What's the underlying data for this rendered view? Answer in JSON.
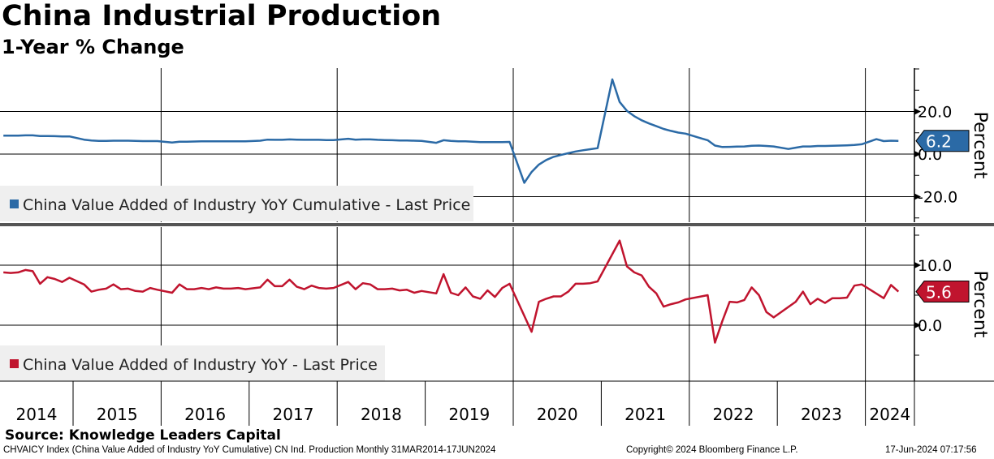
{
  "header": {
    "title": "China Industrial Production",
    "subtitle": "1-Year % Change"
  },
  "source": "Source: Knowledge Leaders Capital",
  "footer": {
    "left": "CHVAICY Index (China Value Added of Industry YoY Cumulative) CN Ind. Production  Monthly 31MAR2014-17JUN2024",
    "center": "Copyright© 2024 Bloomberg Finance L.P.",
    "right": "17-Jun-2024 07:17:56"
  },
  "chart_data": [
    {
      "type": "line",
      "title": "China Value Added of Industry YoY Cumulative - Last Price",
      "legend": "China Value Added of Industry YoY Cumulative - Last Price",
      "ylabel": "Percent",
      "yticks": [
        20.0,
        0.0,
        -20.0
      ],
      "tick_labels": [
        "20.0",
        "0.0",
        "-20.0"
      ],
      "last_value": "6.2",
      "color": "#2b6aa6",
      "points": [
        [
          "2014-03",
          8.7
        ],
        [
          "2014-04",
          8.7
        ],
        [
          "2014-05",
          8.7
        ],
        [
          "2014-06",
          8.8
        ],
        [
          "2014-07",
          8.8
        ],
        [
          "2014-08",
          8.5
        ],
        [
          "2014-09",
          8.5
        ],
        [
          "2014-10",
          8.4
        ],
        [
          "2014-11",
          8.3
        ],
        [
          "2014-12",
          8.3
        ],
        [
          "2015-02",
          6.8
        ],
        [
          "2015-03",
          6.4
        ],
        [
          "2015-04",
          6.2
        ],
        [
          "2015-05",
          6.2
        ],
        [
          "2015-06",
          6.3
        ],
        [
          "2015-07",
          6.3
        ],
        [
          "2015-08",
          6.3
        ],
        [
          "2015-09",
          6.2
        ],
        [
          "2015-10",
          6.1
        ],
        [
          "2015-11",
          6.1
        ],
        [
          "2015-12",
          6.1
        ],
        [
          "2016-02",
          5.4
        ],
        [
          "2016-03",
          5.8
        ],
        [
          "2016-04",
          5.8
        ],
        [
          "2016-05",
          5.9
        ],
        [
          "2016-06",
          6.0
        ],
        [
          "2016-07",
          6.0
        ],
        [
          "2016-08",
          6.0
        ],
        [
          "2016-09",
          6.0
        ],
        [
          "2016-10",
          6.0
        ],
        [
          "2016-11",
          6.0
        ],
        [
          "2016-12",
          6.0
        ],
        [
          "2017-02",
          6.3
        ],
        [
          "2017-03",
          6.8
        ],
        [
          "2017-04",
          6.7
        ],
        [
          "2017-05",
          6.7
        ],
        [
          "2017-06",
          6.9
        ],
        [
          "2017-07",
          6.8
        ],
        [
          "2017-08",
          6.7
        ],
        [
          "2017-09",
          6.7
        ],
        [
          "2017-10",
          6.7
        ],
        [
          "2017-11",
          6.6
        ],
        [
          "2017-12",
          6.6
        ],
        [
          "2018-02",
          7.2
        ],
        [
          "2018-03",
          6.8
        ],
        [
          "2018-04",
          6.9
        ],
        [
          "2018-05",
          6.9
        ],
        [
          "2018-06",
          6.7
        ],
        [
          "2018-07",
          6.6
        ],
        [
          "2018-08",
          6.5
        ],
        [
          "2018-09",
          6.4
        ],
        [
          "2018-10",
          6.4
        ],
        [
          "2018-11",
          6.3
        ],
        [
          "2018-12",
          6.2
        ],
        [
          "2019-02",
          5.3
        ],
        [
          "2019-03",
          6.5
        ],
        [
          "2019-04",
          6.2
        ],
        [
          "2019-05",
          6.0
        ],
        [
          "2019-06",
          6.0
        ],
        [
          "2019-07",
          5.8
        ],
        [
          "2019-08",
          5.6
        ],
        [
          "2019-09",
          5.6
        ],
        [
          "2019-10",
          5.6
        ],
        [
          "2019-11",
          5.6
        ],
        [
          "2019-12",
          5.7
        ],
        [
          "2020-02",
          -13.5
        ],
        [
          "2020-03",
          -8.4
        ],
        [
          "2020-04",
          -4.9
        ],
        [
          "2020-05",
          -2.8
        ],
        [
          "2020-06",
          -1.3
        ],
        [
          "2020-07",
          -0.4
        ],
        [
          "2020-08",
          0.4
        ],
        [
          "2020-09",
          1.2
        ],
        [
          "2020-10",
          1.8
        ],
        [
          "2020-11",
          2.3
        ],
        [
          "2020-12",
          2.8
        ],
        [
          "2021-02",
          35.1
        ],
        [
          "2021-03",
          24.5
        ],
        [
          "2021-04",
          20.3
        ],
        [
          "2021-05",
          17.8
        ],
        [
          "2021-06",
          15.9
        ],
        [
          "2021-07",
          14.4
        ],
        [
          "2021-08",
          13.1
        ],
        [
          "2021-09",
          11.8
        ],
        [
          "2021-10",
          10.9
        ],
        [
          "2021-11",
          10.1
        ],
        [
          "2021-12",
          9.6
        ],
        [
          "2022-02",
          7.5
        ],
        [
          "2022-03",
          6.5
        ],
        [
          "2022-04",
          4.0
        ],
        [
          "2022-05",
          3.3
        ],
        [
          "2022-06",
          3.4
        ],
        [
          "2022-07",
          3.5
        ],
        [
          "2022-08",
          3.6
        ],
        [
          "2022-09",
          3.9
        ],
        [
          "2022-10",
          4.0
        ],
        [
          "2022-11",
          3.8
        ],
        [
          "2022-12",
          3.6
        ],
        [
          "2023-02",
          2.4
        ],
        [
          "2023-03",
          3.0
        ],
        [
          "2023-04",
          3.6
        ],
        [
          "2023-05",
          3.6
        ],
        [
          "2023-06",
          3.8
        ],
        [
          "2023-07",
          3.8
        ],
        [
          "2023-08",
          3.9
        ],
        [
          "2023-09",
          4.0
        ],
        [
          "2023-10",
          4.1
        ],
        [
          "2023-11",
          4.3
        ],
        [
          "2023-12",
          4.6
        ],
        [
          "2024-02",
          7.0
        ],
        [
          "2024-03",
          6.1
        ],
        [
          "2024-04",
          6.3
        ],
        [
          "2024-05",
          6.2
        ]
      ]
    },
    {
      "type": "line",
      "title": "China Value Added of Industry YoY - Last Price",
      "legend": "China Value Added of Industry YoY - Last Price",
      "ylabel": "Percent",
      "yticks": [
        10.0,
        0.0
      ],
      "tick_labels": [
        "10.0",
        "0.0"
      ],
      "last_value": "5.6",
      "color": "#c0142e",
      "points": [
        [
          "2014-03",
          8.8
        ],
        [
          "2014-04",
          8.7
        ],
        [
          "2014-05",
          8.8
        ],
        [
          "2014-06",
          9.2
        ],
        [
          "2014-07",
          9.0
        ],
        [
          "2014-08",
          6.9
        ],
        [
          "2014-09",
          8.0
        ],
        [
          "2014-10",
          7.7
        ],
        [
          "2014-11",
          7.2
        ],
        [
          "2014-12",
          7.9
        ],
        [
          "2015-02",
          6.8
        ],
        [
          "2015-03",
          5.6
        ],
        [
          "2015-04",
          5.9
        ],
        [
          "2015-05",
          6.1
        ],
        [
          "2015-06",
          6.8
        ],
        [
          "2015-07",
          6.0
        ],
        [
          "2015-08",
          6.1
        ],
        [
          "2015-09",
          5.7
        ],
        [
          "2015-10",
          5.6
        ],
        [
          "2015-11",
          6.2
        ],
        [
          "2015-12",
          5.9
        ],
        [
          "2016-02",
          5.4
        ],
        [
          "2016-03",
          6.8
        ],
        [
          "2016-04",
          6.0
        ],
        [
          "2016-05",
          6.0
        ],
        [
          "2016-06",
          6.2
        ],
        [
          "2016-07",
          6.0
        ],
        [
          "2016-08",
          6.3
        ],
        [
          "2016-09",
          6.1
        ],
        [
          "2016-10",
          6.1
        ],
        [
          "2016-11",
          6.2
        ],
        [
          "2016-12",
          6.0
        ],
        [
          "2017-02",
          6.3
        ],
        [
          "2017-03",
          7.6
        ],
        [
          "2017-04",
          6.5
        ],
        [
          "2017-05",
          6.5
        ],
        [
          "2017-06",
          7.6
        ],
        [
          "2017-07",
          6.4
        ],
        [
          "2017-08",
          6.0
        ],
        [
          "2017-09",
          6.6
        ],
        [
          "2017-10",
          6.2
        ],
        [
          "2017-11",
          6.1
        ],
        [
          "2017-12",
          6.2
        ],
        [
          "2018-02",
          7.2
        ],
        [
          "2018-03",
          6.0
        ],
        [
          "2018-04",
          7.0
        ],
        [
          "2018-05",
          6.8
        ],
        [
          "2018-06",
          6.0
        ],
        [
          "2018-07",
          6.0
        ],
        [
          "2018-08",
          6.1
        ],
        [
          "2018-09",
          5.8
        ],
        [
          "2018-10",
          5.9
        ],
        [
          "2018-11",
          5.4
        ],
        [
          "2018-12",
          5.7
        ],
        [
          "2019-02",
          5.3
        ],
        [
          "2019-03",
          8.5
        ],
        [
          "2019-04",
          5.4
        ],
        [
          "2019-05",
          5.0
        ],
        [
          "2019-06",
          6.3
        ],
        [
          "2019-07",
          4.8
        ],
        [
          "2019-08",
          4.4
        ],
        [
          "2019-09",
          5.8
        ],
        [
          "2019-10",
          4.7
        ],
        [
          "2019-11",
          6.2
        ],
        [
          "2019-12",
          6.9
        ],
        [
          "2020-03",
          -1.1
        ],
        [
          "2020-04",
          3.9
        ],
        [
          "2020-05",
          4.4
        ],
        [
          "2020-06",
          4.8
        ],
        [
          "2020-07",
          4.8
        ],
        [
          "2020-08",
          5.6
        ],
        [
          "2020-09",
          6.9
        ],
        [
          "2020-10",
          6.9
        ],
        [
          "2020-11",
          7.0
        ],
        [
          "2020-12",
          7.3
        ],
        [
          "2021-03",
          14.1
        ],
        [
          "2021-04",
          9.8
        ],
        [
          "2021-05",
          8.8
        ],
        [
          "2021-06",
          8.3
        ],
        [
          "2021-07",
          6.4
        ],
        [
          "2021-08",
          5.3
        ],
        [
          "2021-09",
          3.1
        ],
        [
          "2021-10",
          3.5
        ],
        [
          "2021-11",
          3.8
        ],
        [
          "2021-12",
          4.3
        ],
        [
          "2022-03",
          5.0
        ],
        [
          "2022-04",
          -2.9
        ],
        [
          "2022-05",
          0.7
        ],
        [
          "2022-06",
          3.9
        ],
        [
          "2022-07",
          3.8
        ],
        [
          "2022-08",
          4.2
        ],
        [
          "2022-09",
          6.3
        ],
        [
          "2022-10",
          5.0
        ],
        [
          "2022-11",
          2.2
        ],
        [
          "2022-12",
          1.3
        ],
        [
          "2023-03",
          3.9
        ],
        [
          "2023-04",
          5.6
        ],
        [
          "2023-05",
          3.5
        ],
        [
          "2023-06",
          4.4
        ],
        [
          "2023-07",
          3.7
        ],
        [
          "2023-08",
          4.5
        ],
        [
          "2023-09",
          4.5
        ],
        [
          "2023-10",
          4.6
        ],
        [
          "2023-11",
          6.6
        ],
        [
          "2023-12",
          6.8
        ],
        [
          "2024-03",
          4.5
        ],
        [
          "2024-04",
          6.7
        ],
        [
          "2024-05",
          5.6
        ]
      ]
    }
  ],
  "x_axis": {
    "years": [
      "2014",
      "2015",
      "2016",
      "2017",
      "2018",
      "2019",
      "2020",
      "2021",
      "2022",
      "2023",
      "2024"
    ]
  }
}
